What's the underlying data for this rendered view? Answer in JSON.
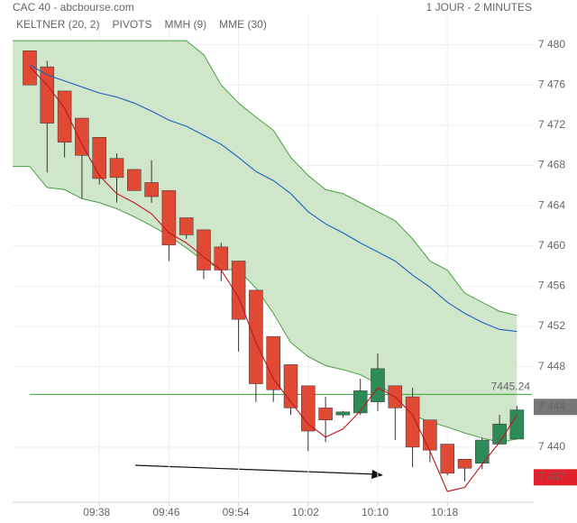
{
  "chart_data": {
    "type": "candlestick",
    "title": "CAC 40 - abcbourse.com",
    "subtitle": "1 JOUR - 2 MINUTES",
    "categories": [
      null,
      null,
      null,
      null,
      "09:38",
      null,
      null,
      null,
      "09:46",
      null,
      null,
      null,
      "09:54",
      null,
      null,
      null,
      "10:02",
      null,
      null,
      null,
      "10:10",
      null,
      null,
      null,
      "10:18",
      null,
      null,
      null,
      null
    ],
    "open": [
      7479.4,
      7477.8,
      7475.4,
      7472.7,
      7470.8,
      7468.7,
      7467.6,
      7466.3,
      7465.5,
      7462.8,
      7461.6,
      7459.9,
      7458.5,
      7455.6,
      7451.0,
      7448.2,
      7446.1,
      7443.9,
      7443.2,
      7443.4,
      7444.5,
      7446.1,
      7445.0,
      7442.7,
      7440.3,
      7438.8,
      7438.4,
      7440.3,
      7440.8
    ],
    "high": [
      7479.4,
      7478.4,
      7475.4,
      7472.7,
      7470.8,
      7469.2,
      7467.6,
      7468.5,
      7465.5,
      7462.8,
      7461.6,
      7460.3,
      7458.5,
      7455.6,
      7451.0,
      7448.2,
      7446.1,
      7445.0,
      7443.6,
      7446.8,
      7449.3,
      7446.1,
      7445.9,
      7442.7,
      7440.3,
      7438.8,
      7440.9,
      7443.2,
      7444.1
    ],
    "low": [
      7476.0,
      7467.3,
      7468.8,
      7464.7,
      7466.1,
      7464.3,
      7465.5,
      7464.3,
      7458.5,
      7460.7,
      7456.7,
      7456.5,
      7449.5,
      7444.5,
      7444.5,
      7443.2,
      7439.6,
      7440.5,
      7442.9,
      7443.2,
      7443.6,
      7440.7,
      7438.0,
      7438.5,
      7437.2,
      7436.6,
      7437.8,
      7440.3,
      7440.8
    ],
    "close": [
      7476.0,
      7472.2,
      7470.3,
      7469.0,
      7466.7,
      7466.8,
      7465.5,
      7464.9,
      7460.1,
      7461.1,
      7457.6,
      7457.6,
      7452.7,
      7446.3,
      7445.7,
      7443.9,
      7441.6,
      7442.7,
      7443.5,
      7445.6,
      7447.8,
      7443.9,
      7440.0,
      7439.7,
      7437.4,
      7437.9,
      7440.7,
      7442.3,
      7443.7
    ],
    "up_color": "#2e8b57",
    "down_color": "#e04a35",
    "overlays": [
      {
        "name": "KELTNER (20, 2)",
        "color": "#4a9e44",
        "fill": "#cfe6cb",
        "upper": [
          7480.4,
          7480.4,
          7480.4,
          7480.4,
          7480.4,
          7480.4,
          7480.4,
          7480.4,
          7480.4,
          7480.4,
          7479.0,
          7476.0,
          7474.2,
          7472.8,
          7471.5,
          7468.8,
          7467.0,
          7465.6,
          7465.2,
          7464.3,
          7463.4,
          7462.5,
          7460.7,
          7458.5,
          7457.6,
          7455.3,
          7454.4,
          7453.5,
          7453.1
        ],
        "lower": [
          7467.9,
          7465.8,
          7465.6,
          7464.7,
          7464.3,
          7463.7,
          7462.9,
          7462.0,
          7461.0,
          7459.8,
          7458.5,
          7457.7,
          7457.6,
          7455.8,
          7453.3,
          7450.4,
          7449.0,
          7448.1,
          7447.7,
          7447.2,
          7446.3,
          7445.0,
          7443.2,
          7442.5,
          7442.0,
          7441.4,
          7440.9,
          7440.5,
          7440.8
        ]
      },
      {
        "name": "PIVOTS",
        "color": "#333333"
      },
      {
        "name": "MMH (9)",
        "color": "#c0141c",
        "values": [
          7477.8,
          7476.0,
          7473.7,
          7470.1,
          7467.0,
          7465.2,
          7464.3,
          7463.2,
          7461.3,
          7460.3,
          7458.9,
          7457.6,
          7454.9,
          7450.4,
          7446.8,
          7444.5,
          7442.3,
          7441.0,
          7441.8,
          7443.6,
          7445.9,
          7445.0,
          7443.2,
          7439.6,
          7435.6,
          7436.0,
          7438.3,
          7440.5,
          7443.2
        ]
      },
      {
        "name": "MME (30)",
        "color": "#1f5fbf",
        "values": [
          7478.0,
          7477.0,
          7476.4,
          7475.8,
          7475.2,
          7474.8,
          7474.2,
          7473.4,
          7472.5,
          7471.9,
          7471.0,
          7470.1,
          7468.8,
          7467.4,
          7466.5,
          7465.2,
          7463.4,
          7462.2,
          7461.3,
          7460.3,
          7459.4,
          7458.5,
          7457.1,
          7455.9,
          7454.4,
          7453.3,
          7452.4,
          7451.7,
          7451.5
        ]
      }
    ],
    "hline": {
      "value": 7445.24,
      "color": "#3a9a3a"
    },
    "last_price": {
      "value": 7444,
      "label": "7 444",
      "color": "#777777"
    },
    "low_marker": {
      "value": 7437,
      "label": "7 437",
      "color": "#e0202a"
    },
    "ylim": [
      7434.7,
      7483.1
    ],
    "yticks": [
      {
        "value": 7440,
        "label": "7 440"
      },
      {
        "value": 7448,
        "label": "7 448"
      },
      {
        "value": 7452,
        "label": "7 452"
      },
      {
        "value": 7456,
        "label": "7 456"
      },
      {
        "value": 7460,
        "label": "7 460"
      },
      {
        "value": 7464,
        "label": "7 464"
      },
      {
        "value": 7468,
        "label": "7 468"
      },
      {
        "value": 7472,
        "label": "7 472"
      },
      {
        "value": 7476,
        "label": "7 476"
      },
      {
        "value": 7480,
        "label": "7 480"
      }
    ],
    "grid": true
  }
}
